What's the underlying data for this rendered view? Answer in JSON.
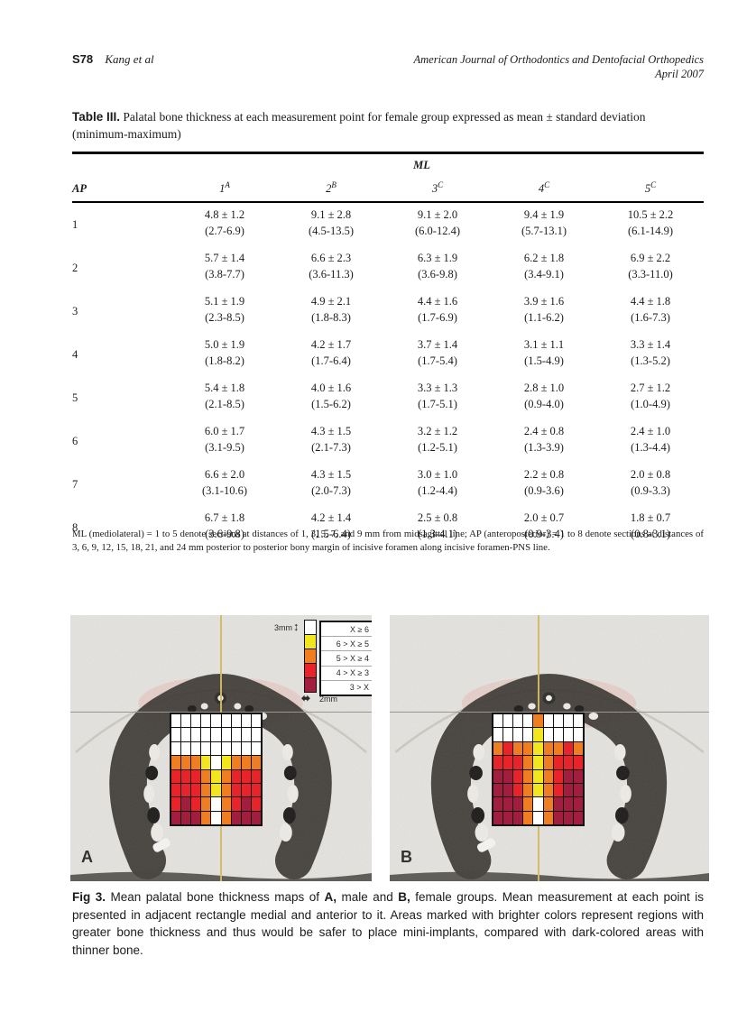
{
  "header": {
    "page_number": "S78",
    "authors": "Kang et al",
    "journal": "American Journal of Orthodontics and Dentofacial Orthopedics",
    "issue": "April 2007"
  },
  "table": {
    "caption_label": "Table III.",
    "caption_text": " Palatal bone thickness at each measurement point for female group expressed as mean ± standard deviation (minimum-maximum)",
    "spanner": "ML",
    "row_header": "AP",
    "columns": [
      {
        "num": "1",
        "sup": "A"
      },
      {
        "num": "2",
        "sup": "B"
      },
      {
        "num": "3",
        "sup": "C"
      },
      {
        "num": "4",
        "sup": "C"
      },
      {
        "num": "5",
        "sup": "C"
      }
    ],
    "rows": [
      {
        "ap": "1",
        "means": [
          "4.8 ± 1.2",
          "9.1 ± 2.8",
          "9.1 ± 2.0",
          "9.4 ± 1.9",
          "10.5 ± 2.2"
        ],
        "ranges": [
          "(2.7-6.9)",
          "(4.5-13.5)",
          "(6.0-12.4)",
          "(5.7-13.1)",
          "(6.1-14.9)"
        ]
      },
      {
        "ap": "2",
        "means": [
          "5.7 ± 1.4",
          "6.6 ± 2.3",
          "6.3 ± 1.9",
          "6.2 ± 1.8",
          "6.9 ± 2.2"
        ],
        "ranges": [
          "(3.8-7.7)",
          "(3.6-11.3)",
          "(3.6-9.8)",
          "(3.4-9.1)",
          "(3.3-11.0)"
        ]
      },
      {
        "ap": "3",
        "means": [
          "5.1 ± 1.9",
          "4.9 ± 2.1",
          "4.4 ± 1.6",
          "3.9 ± 1.6",
          "4.4 ± 1.8"
        ],
        "ranges": [
          "(2.3-8.5)",
          "(1.8-8.3)",
          "(1.7-6.9)",
          "(1.1-6.2)",
          "(1.6-7.3)"
        ]
      },
      {
        "ap": "4",
        "means": [
          "5.0 ± 1.9",
          "4.2 ± 1.7",
          "3.7 ± 1.4",
          "3.1 ± 1.1",
          "3.3 ± 1.4"
        ],
        "ranges": [
          "(1.8-8.2)",
          "(1.7-6.4)",
          "(1.7-5.4)",
          "(1.5-4.9)",
          "(1.3-5.2)"
        ]
      },
      {
        "ap": "5",
        "means": [
          "5.4 ± 1.8",
          "4.0 ± 1.6",
          "3.3 ± 1.3",
          "2.8 ± 1.0",
          "2.7 ± 1.2"
        ],
        "ranges": [
          "(2.1-8.5)",
          "(1.5-6.2)",
          "(1.7-5.1)",
          "(0.9-4.0)",
          "(1.0-4.9)"
        ]
      },
      {
        "ap": "6",
        "means": [
          "6.0 ± 1.7",
          "4.3 ± 1.5",
          "3.2 ± 1.2",
          "2.4 ± 0.8",
          "2.4 ± 1.0"
        ],
        "ranges": [
          "(3.1-9.5)",
          "(2.1-7.3)",
          "(1.2-5.1)",
          "(1.3-3.9)",
          "(1.3-4.4)"
        ]
      },
      {
        "ap": "7",
        "means": [
          "6.6 ± 2.0",
          "4.3 ± 1.5",
          "3.0 ± 1.0",
          "2.2 ± 0.8",
          "2.0 ± 0.8"
        ],
        "ranges": [
          "(3.1-10.6)",
          "(2.0-7.3)",
          "(1.2-4.4)",
          "(0.9-3.6)",
          "(0.9-3.3)"
        ]
      },
      {
        "ap": "8",
        "means": [
          "6.7 ± 1.8",
          "4.2 ± 1.4",
          "2.5 ± 0.8",
          "2.0 ± 0.7",
          "1.8 ± 0.7"
        ],
        "ranges": [
          "(3.6-9.8)",
          "(1.5-6.4)",
          "(1.3-4.1)",
          "(0.9-3.4)",
          "(0.8-3.1)"
        ]
      }
    ],
    "footnote": "ML (mediolateral) = 1 to 5 denote sections at distances of 1, 3, 5, 7, and 9 mm from midsagittal line; AP (anteroposterior) = 1 to 8 denote sections at distances of 3, 6, 9, 12, 15, 18, 21, and 24 mm posterior to posterior bony margin of incisive foramen along incisive foramen-PNS line."
  },
  "figure": {
    "legend": {
      "height_label": "3mm",
      "width_label": "2mm",
      "vertical_arrow_icon": "↕",
      "horizontal_arrow_icon": "⬌",
      "entries": [
        {
          "code": "W",
          "label": "X ≥ 6"
        },
        {
          "code": "Y",
          "label": "6 > X ≥ 5"
        },
        {
          "code": "O",
          "label": "5 > X ≥ 4"
        },
        {
          "code": "R",
          "label": "4 > X ≥ 3"
        },
        {
          "code": "D",
          "label": "3 > X"
        }
      ]
    },
    "color_map": {
      "W": "#ffffff",
      "Y": "#f2e71e",
      "O": "#ef7d22",
      "R": "#e8242a",
      "D": "#a21e3e"
    },
    "panel_a_label": "A",
    "panel_b_label": "B",
    "grid_a": [
      [
        "W",
        "W",
        "W",
        "W",
        "W",
        "W",
        "W",
        "W",
        "W"
      ],
      [
        "W",
        "W",
        "W",
        "W",
        "W",
        "W",
        "W",
        "W",
        "W"
      ],
      [
        "W",
        "W",
        "W",
        "W",
        "W",
        "W",
        "W",
        "W",
        "W"
      ],
      [
        "O",
        "O",
        "O",
        "Y",
        "W",
        "Y",
        "O",
        "O",
        "O"
      ],
      [
        "R",
        "R",
        "R",
        "O",
        "Y",
        "O",
        "R",
        "R",
        "R"
      ],
      [
        "R",
        "R",
        "R",
        "O",
        "Y",
        "O",
        "R",
        "R",
        "R"
      ],
      [
        "R",
        "D",
        "R",
        "O",
        "W",
        "O",
        "R",
        "D",
        "R"
      ],
      [
        "D",
        "D",
        "D",
        "O",
        "W",
        "O",
        "D",
        "D",
        "D"
      ]
    ],
    "grid_b": [
      [
        "W",
        "W",
        "W",
        "W",
        "O",
        "W",
        "W",
        "W",
        "W"
      ],
      [
        "W",
        "W",
        "W",
        "W",
        "Y",
        "W",
        "W",
        "W",
        "W"
      ],
      [
        "O",
        "R",
        "O",
        "O",
        "Y",
        "O",
        "O",
        "R",
        "O"
      ],
      [
        "R",
        "R",
        "R",
        "O",
        "Y",
        "O",
        "R",
        "R",
        "R"
      ],
      [
        "D",
        "D",
        "R",
        "O",
        "Y",
        "O",
        "R",
        "D",
        "D"
      ],
      [
        "D",
        "D",
        "R",
        "O",
        "Y",
        "O",
        "R",
        "D",
        "D"
      ],
      [
        "D",
        "D",
        "D",
        "O",
        "W",
        "O",
        "D",
        "D",
        "D"
      ],
      [
        "D",
        "D",
        "D",
        "O",
        "W",
        "O",
        "D",
        "D",
        "D"
      ]
    ],
    "caption_segments": [
      {
        "text": "Fig 3.",
        "bold": true
      },
      {
        "text": " Mean palatal bone thickness maps of ",
        "bold": false
      },
      {
        "text": "A,",
        "bold": true
      },
      {
        "text": " male and ",
        "bold": false
      },
      {
        "text": "B,",
        "bold": true
      },
      {
        "text": " female groups. Mean measurement at each point is presented in adjacent rectangle medial and anterior to it. Areas marked with brighter colors represent regions with greater bone thickness and thus would be safer to place mini-implants, compared with dark-colored areas with thinner bone.",
        "bold": false
      }
    ]
  }
}
